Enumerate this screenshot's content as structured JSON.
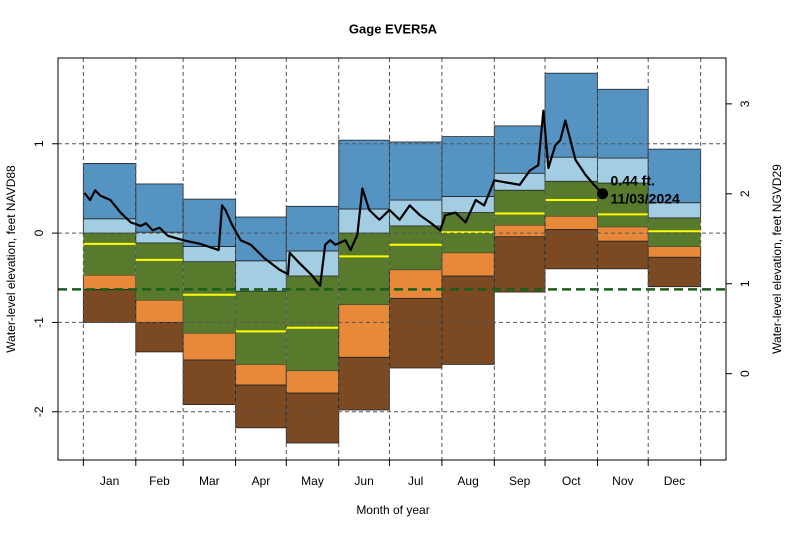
{
  "chart_data": {
    "type": "percentile",
    "title": "Gage EVER5A",
    "xlabel": "Month of year",
    "ylabel": "Water-level elevation, feet NAVD88",
    "y2label": "Water-level elevation, feet NGVD29",
    "categories": [
      "Jan",
      "Feb",
      "Mar",
      "Apr",
      "May",
      "Jun",
      "Jul",
      "Aug",
      "Sep",
      "Oct",
      "Nov",
      "Dec"
    ],
    "month_edges": [
      0,
      31,
      59,
      90,
      120,
      151,
      181,
      212,
      243,
      273,
      304,
      334,
      365
    ],
    "xlim": [
      -15,
      380
    ],
    "ylim": [
      -2.54,
      1.96
    ],
    "yticks": [
      -2,
      -1,
      0,
      1
    ],
    "y2lim": [
      -0.96,
      3.51
    ],
    "y2ticks": [
      0,
      1,
      2,
      3
    ],
    "levels": {
      "min": [
        -1.0,
        -1.33,
        -1.92,
        -2.18,
        -2.35,
        -1.98,
        -1.51,
        -1.47,
        -0.66,
        -0.4,
        -0.4,
        -0.6
      ],
      "p10": [
        -0.63,
        -1.0,
        -1.42,
        -1.7,
        -1.79,
        -1.39,
        -0.73,
        -0.48,
        -0.04,
        0.04,
        -0.09,
        -0.27
      ],
      "p25": [
        -0.47,
        -0.75,
        -1.12,
        -1.47,
        -1.54,
        -0.8,
        -0.41,
        -0.22,
        0.09,
        0.19,
        0.07,
        -0.15
      ],
      "p50": [
        -0.12,
        -0.3,
        -0.69,
        -1.1,
        -1.06,
        -0.26,
        -0.13,
        0.01,
        0.22,
        0.37,
        0.21,
        0.02
      ],
      "p75": [
        0.0,
        -0.11,
        -0.32,
        -0.65,
        -0.48,
        0.0,
        0.08,
        0.23,
        0.48,
        0.58,
        0.56,
        0.17
      ],
      "p90": [
        0.16,
        0.01,
        -0.15,
        -0.31,
        -0.2,
        0.27,
        0.37,
        0.41,
        0.67,
        0.85,
        0.84,
        0.34
      ],
      "max": [
        0.78,
        0.55,
        0.38,
        0.18,
        0.3,
        1.04,
        1.02,
        1.08,
        1.2,
        1.79,
        1.61,
        0.94
      ]
    },
    "band_colors": [
      "#7b4a23",
      "#e8893a",
      "#587a2d",
      "#587a2d",
      "#a2cde3",
      "#5593c3"
    ],
    "median_color": "#ffff00",
    "reference_level": -0.63,
    "reference_color": "#1b5e1b",
    "line": {
      "color": "#000000",
      "x": [
        0.6,
        4,
        7,
        10,
        16,
        22,
        28,
        34,
        37,
        41,
        45,
        50,
        59,
        69,
        80,
        82,
        84,
        88,
        93,
        99,
        107,
        116,
        121,
        122,
        128,
        135,
        140,
        143,
        146,
        149,
        155,
        158,
        162,
        165,
        169,
        175,
        181,
        187,
        193,
        199,
        205,
        211,
        214,
        220,
        226,
        232,
        237,
        243,
        249,
        258,
        264,
        269,
        272,
        275,
        279,
        282,
        285,
        288,
        291,
        297,
        302,
        307
      ],
      "values": [
        0.45,
        0.37,
        0.48,
        0.42,
        0.37,
        0.23,
        0.12,
        0.08,
        0.11,
        0.03,
        0.06,
        -0.03,
        -0.08,
        -0.12,
        -0.19,
        0.31,
        0.26,
        0.09,
        -0.08,
        -0.13,
        -0.28,
        -0.41,
        -0.46,
        -0.22,
        -0.34,
        -0.47,
        -0.59,
        -0.13,
        -0.08,
        -0.13,
        -0.08,
        -0.19,
        -0.02,
        0.5,
        0.26,
        0.15,
        0.26,
        0.15,
        0.31,
        0.2,
        0.12,
        0.03,
        0.2,
        0.23,
        0.12,
        0.37,
        0.31,
        0.59,
        0.57,
        0.54,
        0.7,
        0.76,
        1.37,
        0.73,
        0.98,
        1.04,
        1.26,
        1.04,
        0.82,
        0.65,
        0.54,
        0.44
      ]
    },
    "last_point": {
      "x": 307,
      "value": 0.44,
      "label": "0.44 ft.",
      "date": "11/03/2024"
    },
    "grid": true
  }
}
